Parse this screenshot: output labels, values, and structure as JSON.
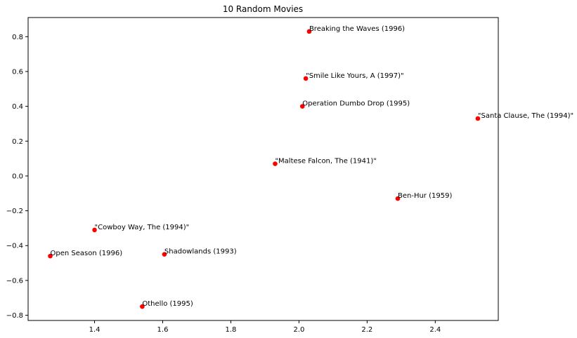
{
  "chart_data": {
    "type": "scatter",
    "title": "10 Random Movies",
    "xlabel": "",
    "ylabel": "",
    "xlim": [
      1.205,
      2.585
    ],
    "ylim": [
      -0.83,
      0.91
    ],
    "xticks": [
      1.4,
      1.6,
      1.8,
      2.0,
      2.2,
      2.4
    ],
    "xtick_labels": [
      "1.4",
      "1.6",
      "1.8",
      "2.0",
      "2.2",
      "2.4"
    ],
    "yticks": [
      -0.8,
      -0.6,
      -0.4,
      -0.2,
      0.0,
      0.2,
      0.4,
      0.6,
      0.8
    ],
    "ytick_labels": [
      "−0.8",
      "−0.6",
      "−0.4",
      "−0.2",
      "0.0",
      "0.2",
      "0.4",
      "0.6",
      "0.8"
    ],
    "grid": false,
    "marker_color": "#ff0000",
    "points": [
      {
        "label": "Breaking the Waves (1996)",
        "x": 2.03,
        "y": 0.83
      },
      {
        "label": "\"Smile Like Yours, A (1997)\"",
        "x": 2.02,
        "y": 0.56
      },
      {
        "label": "Operation Dumbo Drop (1995)",
        "x": 2.01,
        "y": 0.4
      },
      {
        "label": "\"Santa Clause, The (1994)\"",
        "x": 2.525,
        "y": 0.33
      },
      {
        "label": "\"Maltese Falcon, The (1941)\"",
        "x": 1.93,
        "y": 0.07
      },
      {
        "label": "Ben-Hur (1959)",
        "x": 2.29,
        "y": -0.13
      },
      {
        "label": "\"Cowboy Way, The (1994)\"",
        "x": 1.4,
        "y": -0.31
      },
      {
        "label": "Open Season (1996)",
        "x": 1.27,
        "y": -0.46
      },
      {
        "label": "Shadowlands (1993)",
        "x": 1.605,
        "y": -0.45
      },
      {
        "label": "Othello (1995)",
        "x": 1.54,
        "y": -0.75
      }
    ]
  }
}
